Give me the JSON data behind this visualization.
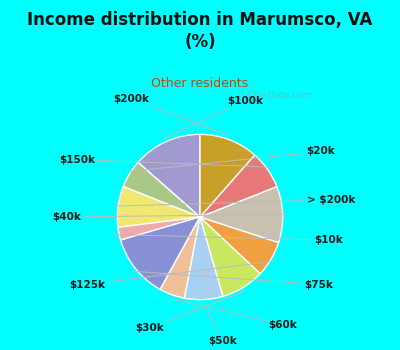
{
  "title": "Income distribution in Marumsco, VA\n(%)",
  "subtitle": "Other residents",
  "title_color": "#111111",
  "subtitle_color": "#cc4400",
  "background_cyan": "#00ffff",
  "background_chart": "#d4f0e8",
  "labels": [
    "$100k",
    "$20k",
    "> $200k",
    "$10k",
    "$75k",
    "$60k",
    "$50k",
    "$30k",
    "$125k",
    "$40k",
    "$150k",
    "$200k"
  ],
  "values": [
    13.5,
    5.5,
    8.0,
    2.5,
    12.5,
    5.0,
    7.5,
    8.5,
    7.0,
    11.0,
    7.5,
    11.5
  ],
  "colors": [
    "#a09ad0",
    "#a8c888",
    "#f0e870",
    "#f0aaaa",
    "#8890d8",
    "#f0c098",
    "#a8d0f0",
    "#c8e860",
    "#f0a040",
    "#c8c0b0",
    "#e87878",
    "#c8a028"
  ],
  "label_fontsize": 7.5,
  "wedge_linewidth": 1.0,
  "wedge_edgecolor": "#ffffff",
  "title_fontsize": 12,
  "subtitle_fontsize": 9
}
